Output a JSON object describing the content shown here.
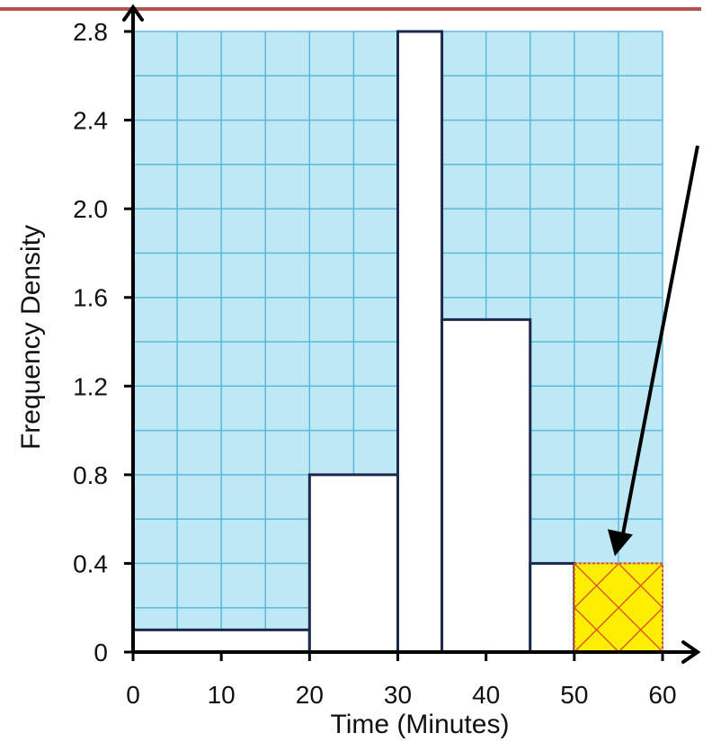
{
  "chart_data": {
    "type": "bar",
    "subtype": "histogram",
    "xlabel": "Time (Minutes)",
    "ylabel": "Frequency Density",
    "xlim": [
      0,
      60
    ],
    "ylim": [
      0,
      2.8
    ],
    "xticks": [
      0,
      10,
      20,
      30,
      40,
      50,
      60
    ],
    "yticks": [
      0,
      0.4,
      0.8,
      1.2,
      1.6,
      2.0,
      2.4,
      2.8
    ],
    "ytick_labels": [
      "0",
      "0.4",
      "0.8",
      "1.2",
      "1.6",
      "2.0",
      "2.4",
      "2.8"
    ],
    "grid": true,
    "grid_minor_x_step": 5,
    "grid_minor_y_step": 0.2,
    "bins": [
      {
        "x0": 0,
        "x1": 20,
        "value": 0.1,
        "highlight": false
      },
      {
        "x0": 20,
        "x1": 30,
        "value": 0.8,
        "highlight": false
      },
      {
        "x0": 30,
        "x1": 35,
        "value": 2.8,
        "highlight": false
      },
      {
        "x0": 35,
        "x1": 45,
        "value": 1.5,
        "highlight": false
      },
      {
        "x0": 45,
        "x1": 50,
        "value": 0.4,
        "highlight": false
      },
      {
        "x0": 50,
        "x1": 60,
        "value": 0.4,
        "highlight": true
      }
    ],
    "annotation_arrow_target": {
      "x": 55,
      "y": 0.4
    },
    "colors": {
      "grid_fill": "#bfe8f5",
      "grid_line": "#5bb8dd",
      "bar_fill": "#ffffff",
      "bar_stroke": "#1b2a4a",
      "highlight_fill": "#ffee00",
      "highlight_hatch": "#e04a2a",
      "axis": "#000000",
      "top_rule": "#b3524f"
    }
  }
}
